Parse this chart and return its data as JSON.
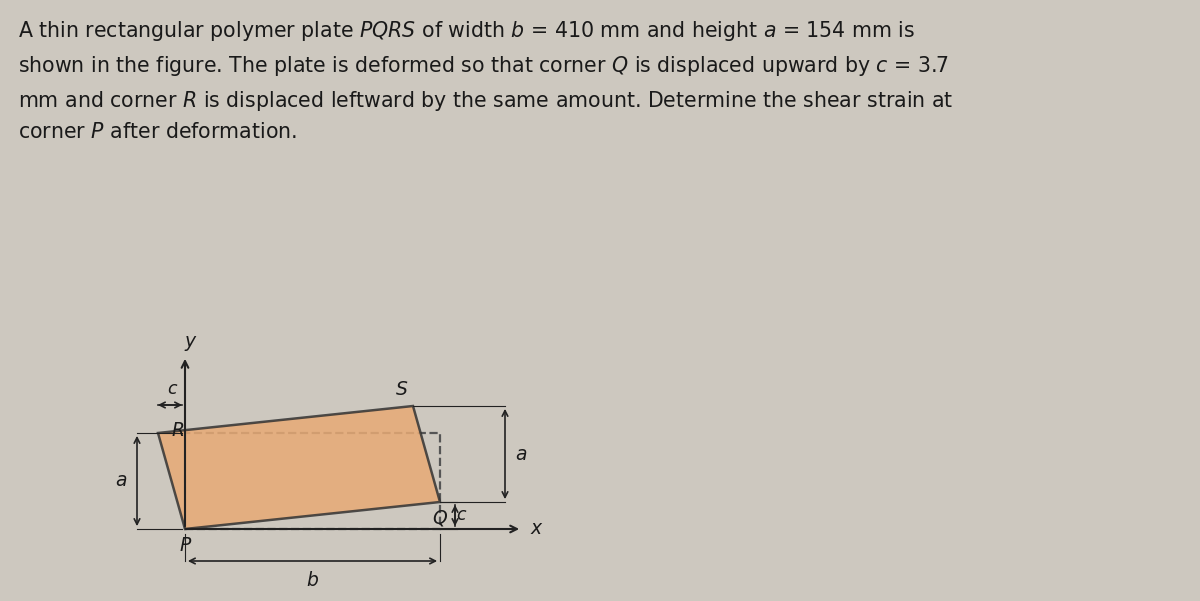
{
  "bg_color": "#cdc8bf",
  "text_color": "#1a1a1a",
  "plate_fill": "#e8aa75",
  "plate_fill_alpha": 0.85,
  "plate_edge_solid": "#333333",
  "plate_edge_dashed": "#555555",
  "dim_line_color": "#222222",
  "axis_color": "#222222",
  "font_size_title": 14.8,
  "font_size_labels": 13.5,
  "b_label": "b",
  "a_label": "a",
  "c_label": "c",
  "P_label": "P",
  "Q_label": "Q",
  "R_label": "R",
  "S_label": "S",
  "x_label": "x",
  "y_label": "y",
  "ox": 1.85,
  "oy": 0.72,
  "b_scale": 2.55,
  "a_scale": 0.96,
  "c_scale": 0.27
}
